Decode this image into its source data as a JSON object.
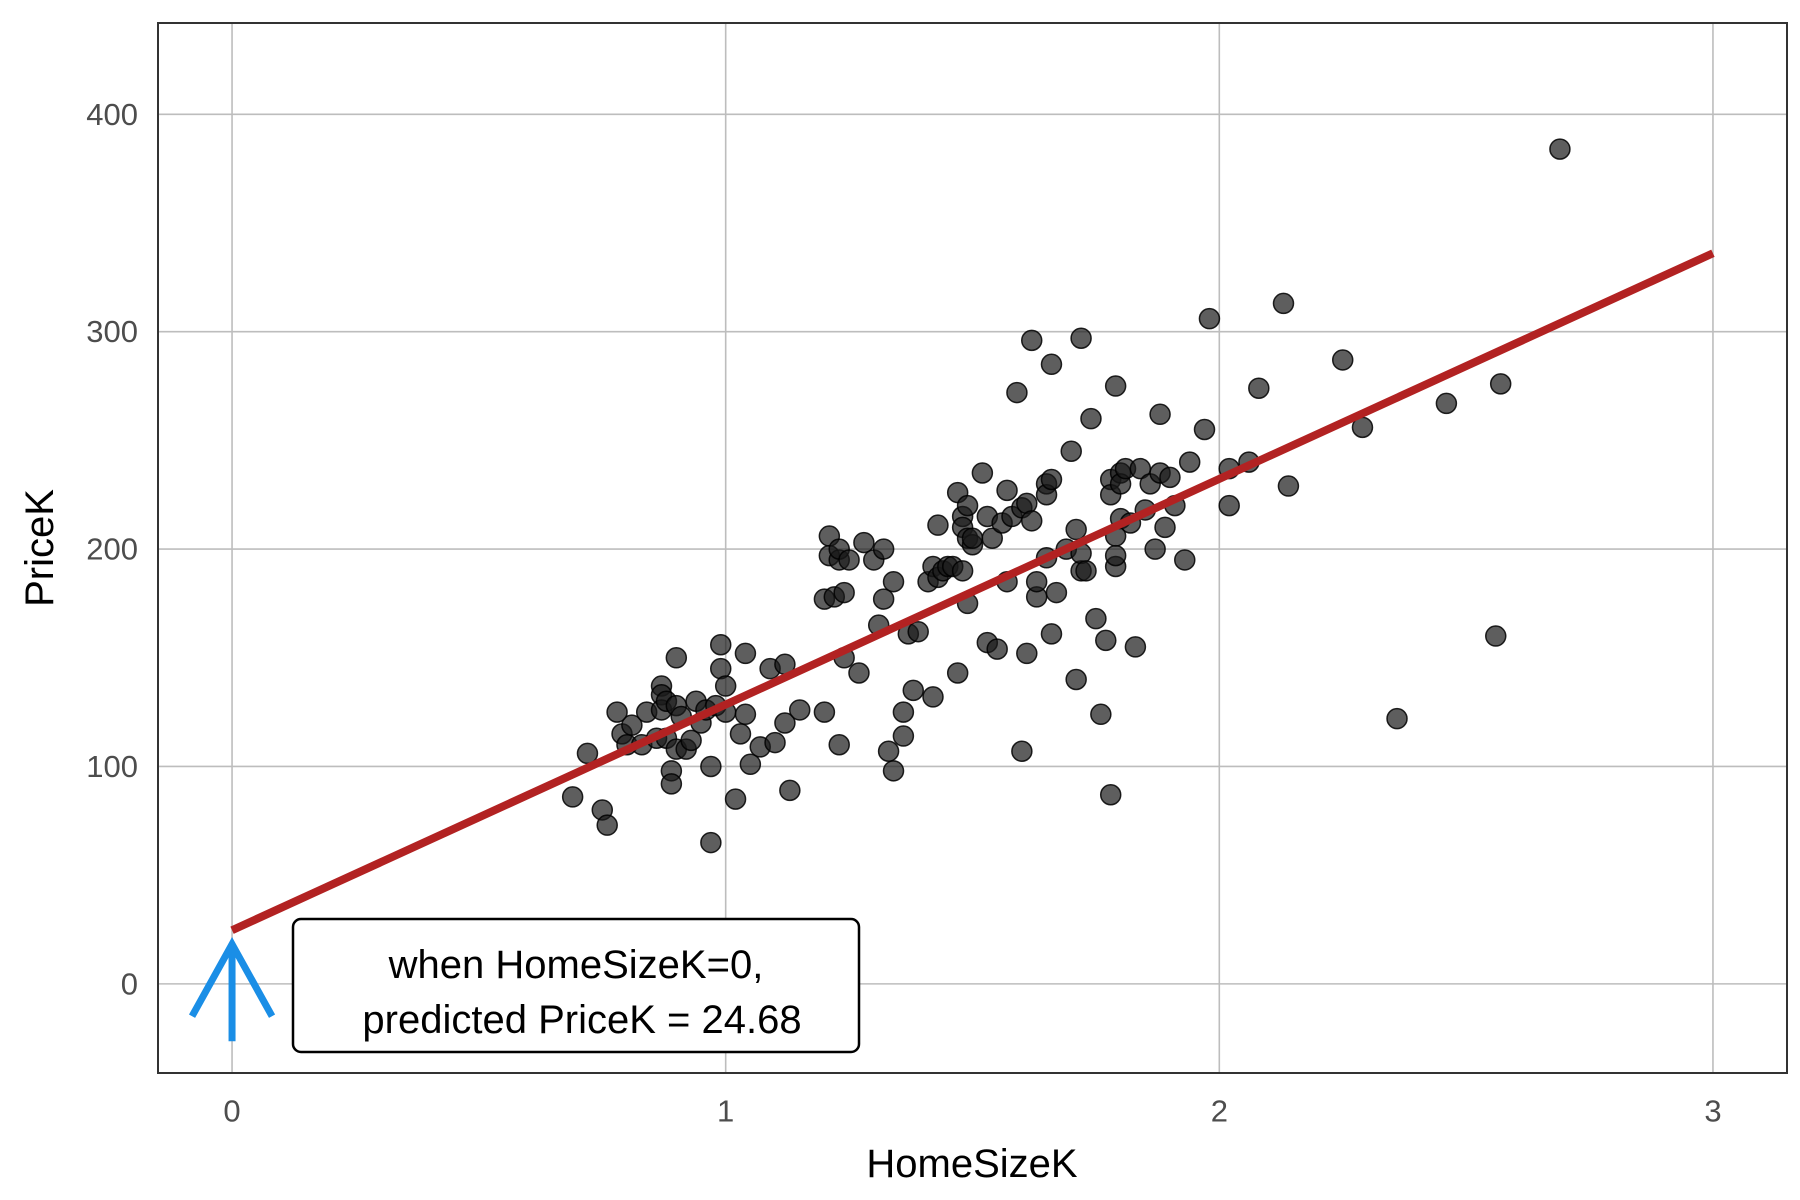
{
  "chart_data": {
    "type": "scatter",
    "title": "",
    "xlabel": "HomeSizeK",
    "ylabel": "PriceK",
    "xlim": [
      -0.15,
      3.15
    ],
    "ylim": [
      -41,
      442
    ],
    "x_ticks": [
      0,
      1,
      2,
      3
    ],
    "y_ticks": [
      0,
      100,
      200,
      300,
      400
    ],
    "x_tick_labels": [
      "0",
      "1",
      "2",
      "3"
    ],
    "y_tick_labels": [
      "0",
      "100",
      "200",
      "300",
      "400"
    ],
    "grid": true,
    "legend": "none",
    "point_color": "#1a1a1a",
    "point_opacity": 0.7,
    "points": [
      [
        0.69,
        86
      ],
      [
        0.72,
        106
      ],
      [
        0.75,
        80
      ],
      [
        0.76,
        73
      ],
      [
        0.78,
        125
      ],
      [
        0.79,
        115
      ],
      [
        0.8,
        110
      ],
      [
        0.81,
        119
      ],
      [
        0.83,
        110
      ],
      [
        0.84,
        125
      ],
      [
        0.86,
        113
      ],
      [
        0.87,
        137
      ],
      [
        0.87,
        133
      ],
      [
        0.87,
        126
      ],
      [
        0.88,
        113
      ],
      [
        0.88,
        130
      ],
      [
        0.89,
        98
      ],
      [
        0.89,
        92
      ],
      [
        0.9,
        108
      ],
      [
        0.9,
        150
      ],
      [
        0.9,
        128
      ],
      [
        0.91,
        123
      ],
      [
        0.92,
        108
      ],
      [
        0.93,
        112
      ],
      [
        0.94,
        130
      ],
      [
        0.95,
        120
      ],
      [
        0.96,
        126
      ],
      [
        0.97,
        100
      ],
      [
        0.97,
        65
      ],
      [
        0.98,
        128
      ],
      [
        0.99,
        156
      ],
      [
        0.99,
        145
      ],
      [
        1.0,
        137
      ],
      [
        1.0,
        125
      ],
      [
        1.02,
        85
      ],
      [
        1.03,
        115
      ],
      [
        1.04,
        124
      ],
      [
        1.04,
        152
      ],
      [
        1.05,
        101
      ],
      [
        1.07,
        109
      ],
      [
        1.09,
        145
      ],
      [
        1.1,
        111
      ],
      [
        1.12,
        147
      ],
      [
        1.12,
        120
      ],
      [
        1.13,
        89
      ],
      [
        1.15,
        126
      ],
      [
        1.2,
        125
      ],
      [
        1.2,
        177
      ],
      [
        1.21,
        206
      ],
      [
        1.21,
        197
      ],
      [
        1.22,
        178
      ],
      [
        1.23,
        195
      ],
      [
        1.23,
        200
      ],
      [
        1.23,
        110
      ],
      [
        1.24,
        180
      ],
      [
        1.24,
        150
      ],
      [
        1.25,
        195
      ],
      [
        1.27,
        143
      ],
      [
        1.28,
        203
      ],
      [
        1.3,
        195
      ],
      [
        1.31,
        165
      ],
      [
        1.32,
        177
      ],
      [
        1.32,
        200
      ],
      [
        1.33,
        107
      ],
      [
        1.34,
        185
      ],
      [
        1.34,
        98
      ],
      [
        1.36,
        125
      ],
      [
        1.36,
        114
      ],
      [
        1.37,
        161
      ],
      [
        1.38,
        135
      ],
      [
        1.39,
        162
      ],
      [
        1.41,
        185
      ],
      [
        1.42,
        132
      ],
      [
        1.42,
        192
      ],
      [
        1.43,
        187
      ],
      [
        1.43,
        211
      ],
      [
        1.44,
        190
      ],
      [
        1.45,
        192
      ],
      [
        1.46,
        192
      ],
      [
        1.47,
        143
      ],
      [
        1.47,
        226
      ],
      [
        1.48,
        215
      ],
      [
        1.48,
        210
      ],
      [
        1.48,
        190
      ],
      [
        1.49,
        220
      ],
      [
        1.49,
        175
      ],
      [
        1.49,
        205
      ],
      [
        1.5,
        202
      ],
      [
        1.5,
        205
      ],
      [
        1.52,
        235
      ],
      [
        1.53,
        157
      ],
      [
        1.53,
        215
      ],
      [
        1.54,
        205
      ],
      [
        1.55,
        154
      ],
      [
        1.56,
        212
      ],
      [
        1.57,
        227
      ],
      [
        1.57,
        185
      ],
      [
        1.58,
        215
      ],
      [
        1.59,
        272
      ],
      [
        1.6,
        107
      ],
      [
        1.6,
        219
      ],
      [
        1.61,
        221
      ],
      [
        1.61,
        152
      ],
      [
        1.62,
        213
      ],
      [
        1.62,
        296
      ],
      [
        1.63,
        178
      ],
      [
        1.63,
        185
      ],
      [
        1.65,
        230
      ],
      [
        1.65,
        225
      ],
      [
        1.65,
        196
      ],
      [
        1.66,
        232
      ],
      [
        1.66,
        285
      ],
      [
        1.66,
        161
      ],
      [
        1.67,
        180
      ],
      [
        1.69,
        200
      ],
      [
        1.7,
        245
      ],
      [
        1.71,
        209
      ],
      [
        1.71,
        140
      ],
      [
        1.72,
        297
      ],
      [
        1.72,
        190
      ],
      [
        1.72,
        198
      ],
      [
        1.73,
        190
      ],
      [
        1.74,
        260
      ],
      [
        1.75,
        168
      ],
      [
        1.76,
        124
      ],
      [
        1.77,
        158
      ],
      [
        1.78,
        87
      ],
      [
        1.78,
        232
      ],
      [
        1.78,
        225
      ],
      [
        1.79,
        192
      ],
      [
        1.79,
        197
      ],
      [
        1.79,
        206
      ],
      [
        1.79,
        275
      ],
      [
        1.8,
        214
      ],
      [
        1.8,
        235
      ],
      [
        1.8,
        230
      ],
      [
        1.81,
        237
      ],
      [
        1.82,
        212
      ],
      [
        1.83,
        155
      ],
      [
        1.84,
        237
      ],
      [
        1.85,
        218
      ],
      [
        1.86,
        230
      ],
      [
        1.87,
        200
      ],
      [
        1.88,
        235
      ],
      [
        1.88,
        262
      ],
      [
        1.89,
        210
      ],
      [
        1.9,
        233
      ],
      [
        1.91,
        220
      ],
      [
        1.93,
        195
      ],
      [
        1.94,
        240
      ],
      [
        1.97,
        255
      ],
      [
        1.98,
        306
      ],
      [
        2.02,
        237
      ],
      [
        2.02,
        220
      ],
      [
        2.06,
        240
      ],
      [
        2.08,
        274
      ],
      [
        2.13,
        313
      ],
      [
        2.14,
        229
      ],
      [
        2.25,
        287
      ],
      [
        2.29,
        256
      ],
      [
        2.36,
        122
      ],
      [
        2.46,
        267
      ],
      [
        2.56,
        160
      ],
      [
        2.57,
        276
      ],
      [
        2.69,
        384
      ]
    ],
    "regression_line": {
      "intercept": 24.68,
      "slope": 103.8,
      "x_range": [
        0,
        3
      ],
      "color": "#b22222"
    },
    "annotations": [
      {
        "text": "when HomeSizeK=0,",
        "line": 1
      },
      {
        "text": "predicted PriceK = 24.68",
        "line": 2
      }
    ],
    "arrow": {
      "x": 0,
      "color": "#1a8ee6"
    }
  }
}
